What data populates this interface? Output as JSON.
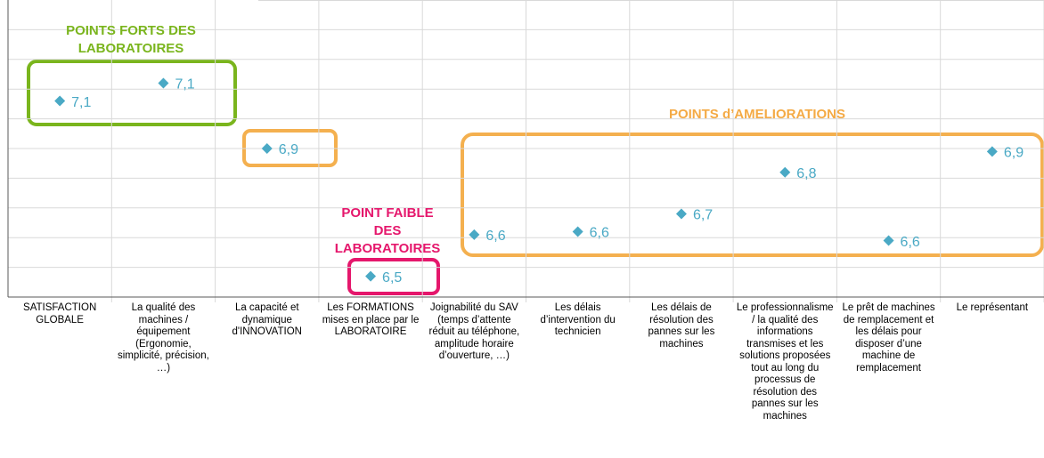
{
  "chart_data": {
    "type": "dot",
    "categories": [
      "SATISFACTION GLOBALE",
      "La qualité des machines / équipement (Ergonomie, simplicité, précision, …)",
      "La capacité et dynamique d'INNOVATION",
      "Les FORMATIONS mises en place par le LABORATOIRE",
      "Joignabilité du SAV (temps d’attente réduit au téléphone, amplitude horaire d’ouverture, …)",
      "Les délais d’intervention du technicien",
      "Les délais de résolution des pannes sur les machines",
      "Le professionnalisme / la qualité des informations transmises et les solutions proposées tout au long du processus de résolution des pannes sur les machines",
      "Le prêt de machines de remplacement et les délais pour disposer d’une machine de remplacement",
      "Le représentant"
    ],
    "values": [
      7.08,
      7.14,
      6.92,
      6.49,
      6.63,
      6.64,
      6.7,
      6.84,
      6.61,
      6.91
    ],
    "value_labels": [
      "7,1",
      "7,1",
      "6,9",
      "6,5",
      "6,6",
      "6,6",
      "6,7",
      "6,8",
      "6,6",
      "6,9"
    ],
    "color": "#4aa9c5",
    "ylim": [
      6.42,
      7.42
    ],
    "yticks": [
      6.52,
      6.62,
      6.72,
      6.82,
      6.92,
      7.02,
      7.12,
      7.22,
      7.32
    ],
    "grid": true,
    "annotations": [
      {
        "lines": [
          "POINTS FORTS DES",
          "LABORATOIRES"
        ],
        "color": "#7ab51d"
      },
      {
        "lines": [
          "POINTS d’AMELIORATIONS"
        ],
        "color": "#f4aa45"
      },
      {
        "lines": [
          "POINT FAIBLE",
          "DES",
          "LABORATOIRES"
        ],
        "color": "#e5176c"
      }
    ]
  }
}
